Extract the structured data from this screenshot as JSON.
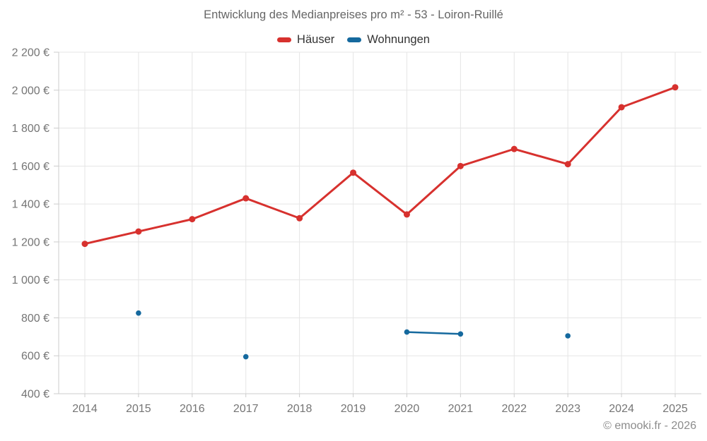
{
  "title": "Entwicklung des Medianpreises pro m² - 53 - Loiron-Ruillé",
  "footer": {
    "copyright": "© emooki.fr - 2026"
  },
  "colors": {
    "haeuser": "#d7312e",
    "wohnungen": "#15699e",
    "grid": "#e5e5e5",
    "axis": "#cccccc",
    "title_text": "#666666",
    "legend_text": "#333333",
    "tick_text": "#757575",
    "footer_text": "#8c8c8c",
    "background": "#ffffff"
  },
  "chart_data": {
    "type": "line",
    "title": "Entwicklung des Medianpreises pro m² - 53 - Loiron-Ruillé",
    "x": [
      "2014",
      "2015",
      "2016",
      "2017",
      "2018",
      "2019",
      "2020",
      "2021",
      "2022",
      "2023",
      "2024",
      "2025"
    ],
    "series": [
      {
        "name": "Häuser",
        "color": "#d7312e",
        "line_width": 3,
        "point_radius": 4.5,
        "values": [
          1190,
          1255,
          1320,
          1430,
          1325,
          1565,
          1345,
          1600,
          1690,
          1610,
          1910,
          2015
        ]
      },
      {
        "name": "Wohnungen",
        "color": "#15699e",
        "line_width": 2.5,
        "point_radius": 3.8,
        "values": [
          null,
          825,
          null,
          595,
          null,
          null,
          725,
          715,
          null,
          705,
          null,
          null
        ]
      }
    ],
    "xlabel": "",
    "ylabel": "",
    "ytick_suffix": " €",
    "ylim": [
      400,
      2200
    ],
    "ytick_step": 200,
    "grid": true,
    "legend_position": "top"
  }
}
